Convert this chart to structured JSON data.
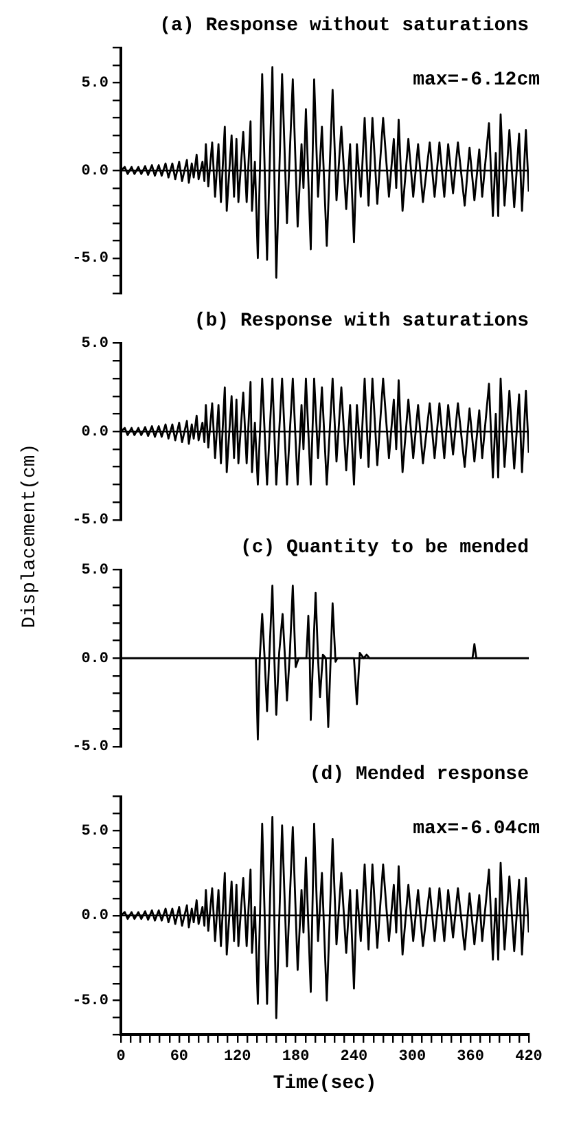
{
  "chart_data": [
    {
      "type": "line",
      "title": "(a) Response without saturations",
      "annotations": [
        "max=-6.12cm"
      ],
      "marker": "none",
      "tick_labels": "y",
      "xlim": [
        0,
        420
      ],
      "ylim": [
        -7,
        7
      ],
      "yticks": [
        {
          "value": -7,
          "label": null
        },
        {
          "value": -6,
          "label": null
        },
        {
          "value": -5,
          "label": "-5.0"
        },
        {
          "value": -4,
          "label": null
        },
        {
          "value": -3,
          "label": null
        },
        {
          "value": -2,
          "label": null
        },
        {
          "value": -1,
          "label": null
        },
        {
          "value": 0,
          "label": "0.0"
        },
        {
          "value": 1,
          "label": null
        },
        {
          "value": 2,
          "label": null
        },
        {
          "value": 3,
          "label": null
        },
        {
          "value": 4,
          "label": null
        },
        {
          "value": 5,
          "label": "5.0"
        },
        {
          "value": 6,
          "label": null
        },
        {
          "value": 7,
          "label": null
        }
      ],
      "ref_lines": [
        {
          "axis": "y",
          "value": 0,
          "color": "#000000"
        }
      ],
      "series": [
        {
          "color": "#000000",
          "x": [
            0,
            4,
            7,
            11,
            14,
            18,
            21,
            25,
            28,
            32,
            35,
            39,
            42,
            46,
            49,
            53,
            56,
            60,
            63,
            68,
            70,
            73,
            75,
            78,
            80,
            84,
            86,
            87.5,
            90,
            94,
            97,
            100.5,
            103,
            107,
            109,
            114,
            116.5,
            119,
            121,
            126,
            129.5,
            133.5,
            135,
            138,
            141,
            145.5,
            150.5,
            156,
            160,
            166,
            171,
            177,
            182,
            186,
            188,
            190.5,
            195.5,
            199,
            203,
            207,
            212,
            218,
            222,
            227,
            232,
            236,
            240,
            243,
            247,
            251,
            255,
            259,
            264,
            270,
            276,
            281,
            283.5,
            286,
            290,
            296,
            301,
            306,
            311,
            318,
            323,
            328,
            333,
            337,
            342,
            347,
            354,
            359,
            364,
            369,
            372,
            379,
            383,
            386,
            388.5,
            391,
            395,
            400,
            405,
            410,
            413,
            417,
            420
          ],
          "values": [
            0,
            0.2,
            -0.2,
            0.2,
            -0.2,
            0.2,
            -0.2,
            0.25,
            -0.25,
            0.3,
            -0.3,
            0.3,
            -0.3,
            0.4,
            -0.4,
            0.4,
            -0.5,
            0.5,
            -0.6,
            0.6,
            -0.7,
            0.4,
            -0.4,
            0.9,
            -0.5,
            0.5,
            -0.6,
            1.5,
            -0.9,
            1.6,
            -1.5,
            1.5,
            -1.8,
            2.5,
            -2.3,
            2.0,
            -1.5,
            1.8,
            -1.8,
            2.2,
            -1.8,
            2.8,
            -2.3,
            0.5,
            -5.0,
            5.5,
            -5.1,
            5.9,
            -6.12,
            5.5,
            -3.0,
            5.2,
            -3.2,
            1.5,
            -1.0,
            3.5,
            -4.5,
            5.2,
            -1.5,
            2.5,
            -4.3,
            4.6,
            -1.7,
            2.5,
            -2.2,
            1.5,
            -4.1,
            1.5,
            -1.5,
            3.0,
            -2.0,
            3.0,
            -1.9,
            3.0,
            -1.5,
            1.8,
            -1.0,
            2.9,
            -2.3,
            1.8,
            -1.5,
            1.5,
            -1.8,
            1.6,
            -1.5,
            1.6,
            -1.5,
            1.5,
            -1.3,
            1.6,
            -2.0,
            1.3,
            -1.7,
            1.2,
            -1.5,
            2.7,
            -2.6,
            1.0,
            -2.6,
            3.2,
            -2.0,
            2.3,
            -2.1,
            2.1,
            -2.3,
            2.3,
            -1.2
          ]
        }
      ]
    },
    {
      "type": "line",
      "title": "(b) Response with saturations",
      "ylabel": "Displacement(cm)",
      "marker": "none",
      "tick_labels": "y",
      "xlim": [
        0,
        420
      ],
      "ylim": [
        -5,
        5
      ],
      "yticks": [
        {
          "value": -5,
          "label": "-5.0"
        },
        {
          "value": -4,
          "label": null
        },
        {
          "value": -3,
          "label": null
        },
        {
          "value": -2,
          "label": null
        },
        {
          "value": -1,
          "label": null
        },
        {
          "value": 0,
          "label": "0.0"
        },
        {
          "value": 1,
          "label": null
        },
        {
          "value": 2,
          "label": null
        },
        {
          "value": 3,
          "label": null
        },
        {
          "value": 4,
          "label": null
        },
        {
          "value": 5,
          "label": "5.0"
        }
      ],
      "ref_lines": [
        {
          "axis": "y",
          "value": 0,
          "color": "#000000"
        }
      ],
      "series": [
        {
          "color": "#000000",
          "x": [
            0,
            4,
            7,
            11,
            14,
            18,
            21,
            25,
            28,
            32,
            35,
            39,
            42,
            46,
            49,
            53,
            56,
            60,
            63,
            68,
            70,
            73,
            75,
            78,
            80,
            84,
            86,
            87.5,
            90,
            94,
            97,
            100.5,
            103,
            107,
            109,
            114,
            116.5,
            119,
            121,
            126,
            129.5,
            133.5,
            135,
            138,
            141,
            145.5,
            150.5,
            156,
            160,
            166,
            171,
            177,
            182,
            186,
            188,
            190.5,
            195.5,
            199,
            203,
            207,
            212,
            218,
            222,
            227,
            232,
            236,
            240,
            243,
            247,
            251,
            255,
            259,
            264,
            270,
            276,
            281,
            283.5,
            286,
            290,
            296,
            301,
            306,
            311,
            318,
            323,
            328,
            333,
            337,
            342,
            347,
            354,
            359,
            364,
            369,
            372,
            379,
            383,
            386,
            388.5,
            391,
            395,
            400,
            405,
            410,
            413,
            417,
            420
          ],
          "values": [
            0,
            0.2,
            -0.2,
            0.2,
            -0.2,
            0.2,
            -0.2,
            0.25,
            -0.25,
            0.3,
            -0.3,
            0.3,
            -0.3,
            0.4,
            -0.4,
            0.4,
            -0.5,
            0.5,
            -0.6,
            0.6,
            -0.7,
            0.4,
            -0.4,
            0.9,
            -0.5,
            0.5,
            -0.6,
            1.5,
            -0.9,
            1.6,
            -1.5,
            1.5,
            -1.8,
            2.5,
            -2.3,
            2.0,
            -1.5,
            1.8,
            -1.8,
            2.2,
            -1.8,
            2.8,
            -2.3,
            0.5,
            -3.0,
            3.0,
            -3.0,
            3.0,
            -3.0,
            3.0,
            -3.0,
            3.0,
            -3.0,
            1.5,
            -1.0,
            3.0,
            -3.0,
            3.0,
            -1.5,
            2.5,
            -3.0,
            3.0,
            -1.7,
            2.5,
            -2.2,
            1.5,
            -3.0,
            1.5,
            -1.5,
            3.0,
            -2.0,
            3.0,
            -1.9,
            3.0,
            -1.5,
            1.8,
            -1.0,
            2.9,
            -2.3,
            1.8,
            -1.5,
            1.5,
            -1.8,
            1.6,
            -1.5,
            1.6,
            -1.5,
            1.5,
            -1.3,
            1.6,
            -2.0,
            1.3,
            -1.7,
            1.2,
            -1.5,
            2.7,
            -2.6,
            1.0,
            -2.6,
            3.0,
            -2.0,
            2.3,
            -2.1,
            2.1,
            -2.3,
            2.3,
            -1.2
          ]
        }
      ]
    },
    {
      "type": "line",
      "title": "(c) Quantity to be mended",
      "marker": "none",
      "tick_labels": "y",
      "xlim": [
        0,
        420
      ],
      "ylim": [
        -5,
        5
      ],
      "yticks": [
        {
          "value": -5,
          "label": "-5.0"
        },
        {
          "value": -4,
          "label": null
        },
        {
          "value": -3,
          "label": null
        },
        {
          "value": -2,
          "label": null
        },
        {
          "value": -1,
          "label": null
        },
        {
          "value": 0,
          "label": "0.0"
        },
        {
          "value": 1,
          "label": null
        },
        {
          "value": 2,
          "label": null
        },
        {
          "value": 3,
          "label": null
        },
        {
          "value": 4,
          "label": null
        },
        {
          "value": 5,
          "label": "5.0"
        }
      ],
      "ref_lines": [
        {
          "axis": "y",
          "value": 0,
          "color": "#000000"
        }
      ],
      "series": [
        {
          "color": "#000000",
          "x": [
            0,
            139,
            141,
            143,
            145.5,
            148,
            150.5,
            153,
            156,
            158,
            160,
            163,
            166.5,
            169,
            171,
            174,
            177,
            180,
            183,
            191,
            193,
            194.5,
            195.5,
            198,
            200.5,
            203,
            205,
            208,
            211,
            213.5,
            216,
            218,
            221,
            223,
            240,
            243,
            246,
            250,
            253,
            256,
            362,
            364,
            366,
            420
          ],
          "values": [
            0,
            0,
            -4.6,
            0,
            2.5,
            0,
            -3.0,
            0.3,
            4.1,
            0,
            -3.2,
            0.3,
            2.5,
            0,
            -2.4,
            0.3,
            4.1,
            -0.5,
            0,
            0,
            2.4,
            0,
            -3.5,
            0.2,
            3.7,
            0,
            -2.2,
            0.2,
            0,
            -3.9,
            0,
            3.1,
            -0.2,
            0,
            0,
            -2.6,
            0.3,
            0,
            0.2,
            0,
            0,
            0.8,
            0,
            0
          ]
        }
      ]
    },
    {
      "type": "line",
      "title": "(d) Mended response",
      "xlabel": "Time(sec)",
      "annotations": [
        "max=-6.04cm"
      ],
      "marker": "none",
      "xlim": [
        0,
        420
      ],
      "ylim": [
        -7,
        7
      ],
      "xticks": [
        0,
        {
          "value": 10,
          "label": null
        },
        {
          "value": 20,
          "label": null
        },
        {
          "value": 30,
          "label": null
        },
        {
          "value": 40,
          "label": null
        },
        {
          "value": 50,
          "label": null
        },
        60,
        {
          "value": 70,
          "label": null
        },
        {
          "value": 80,
          "label": null
        },
        {
          "value": 90,
          "label": null
        },
        {
          "value": 100,
          "label": null
        },
        {
          "value": 110,
          "label": null
        },
        120,
        {
          "value": 130,
          "label": null
        },
        {
          "value": 140,
          "label": null
        },
        {
          "value": 150,
          "label": null
        },
        {
          "value": 160,
          "label": null
        },
        {
          "value": 170,
          "label": null
        },
        180,
        {
          "value": 190,
          "label": null
        },
        {
          "value": 200,
          "label": null
        },
        {
          "value": 210,
          "label": null
        },
        {
          "value": 220,
          "label": null
        },
        {
          "value": 230,
          "label": null
        },
        240,
        {
          "value": 250,
          "label": null
        },
        {
          "value": 260,
          "label": null
        },
        {
          "value": 270,
          "label": null
        },
        {
          "value": 280,
          "label": null
        },
        {
          "value": 290,
          "label": null
        },
        300,
        {
          "value": 310,
          "label": null
        },
        {
          "value": 320,
          "label": null
        },
        {
          "value": 330,
          "label": null
        },
        {
          "value": 340,
          "label": null
        },
        {
          "value": 350,
          "label": null
        },
        360,
        {
          "value": 370,
          "label": null
        },
        {
          "value": 380,
          "label": null
        },
        {
          "value": 390,
          "label": null
        },
        {
          "value": 400,
          "label": null
        },
        {
          "value": 410,
          "label": null
        },
        420
      ],
      "yticks": [
        {
          "value": -7,
          "label": null
        },
        {
          "value": -6,
          "label": null
        },
        {
          "value": -5,
          "label": "-5.0"
        },
        {
          "value": -4,
          "label": null
        },
        {
          "value": -3,
          "label": null
        },
        {
          "value": -2,
          "label": null
        },
        {
          "value": -1,
          "label": null
        },
        {
          "value": 0,
          "label": "0.0"
        },
        {
          "value": 1,
          "label": null
        },
        {
          "value": 2,
          "label": null
        },
        {
          "value": 3,
          "label": null
        },
        {
          "value": 4,
          "label": null
        },
        {
          "value": 5,
          "label": "5.0"
        },
        {
          "value": 6,
          "label": null
        },
        {
          "value": 7,
          "label": null
        }
      ],
      "ref_lines": [
        {
          "axis": "y",
          "value": 0,
          "color": "#000000"
        }
      ],
      "series": [
        {
          "color": "#000000",
          "x": [
            0,
            4,
            7,
            11,
            14,
            18,
            21,
            25,
            28,
            32,
            35,
            39,
            42,
            46,
            49,
            53,
            56,
            60,
            63,
            68,
            70,
            73,
            75,
            78,
            80,
            84,
            86,
            87.5,
            90,
            94,
            97,
            100.5,
            103,
            107,
            109,
            114,
            116.5,
            119,
            121,
            126,
            129.5,
            133.5,
            135,
            138,
            141,
            145.5,
            150.5,
            156,
            160,
            166,
            171,
            177,
            182,
            186,
            188,
            190.5,
            195.5,
            199,
            203,
            207,
            212,
            218,
            222,
            227,
            232,
            236,
            240,
            243,
            247,
            251,
            255,
            259,
            264,
            270,
            276,
            281,
            283.5,
            286,
            290,
            296,
            301,
            306,
            311,
            318,
            323,
            328,
            333,
            337,
            342,
            347,
            354,
            359,
            364,
            369,
            372,
            379,
            383,
            386,
            388.5,
            391,
            395,
            400,
            405,
            410,
            413,
            417,
            420
          ],
          "values": [
            0,
            0.2,
            -0.2,
            0.2,
            -0.2,
            0.2,
            -0.2,
            0.25,
            -0.25,
            0.3,
            -0.3,
            0.3,
            -0.3,
            0.4,
            -0.4,
            0.4,
            -0.5,
            0.5,
            -0.6,
            0.6,
            -0.7,
            0.4,
            -0.4,
            0.9,
            -0.5,
            0.5,
            -0.6,
            1.5,
            -0.9,
            1.6,
            -1.5,
            1.5,
            -1.8,
            2.5,
            -2.3,
            2.0,
            -1.5,
            1.8,
            -1.8,
            2.2,
            -1.8,
            2.7,
            -2.2,
            0.5,
            -5.2,
            5.4,
            -5.2,
            5.8,
            -6.04,
            5.3,
            -3.0,
            5.2,
            -3.2,
            1.5,
            -1.0,
            3.4,
            -4.5,
            5.4,
            -1.5,
            2.5,
            -5.0,
            4.5,
            -1.7,
            2.5,
            -2.2,
            1.5,
            -4.3,
            1.5,
            -1.5,
            3.0,
            -2.0,
            3.0,
            -1.9,
            3.0,
            -1.5,
            1.8,
            -1.0,
            2.9,
            -2.3,
            1.8,
            -1.5,
            1.5,
            -1.8,
            1.6,
            -1.5,
            1.6,
            -1.5,
            1.5,
            -1.3,
            1.6,
            -2.0,
            1.3,
            -1.7,
            1.2,
            -1.5,
            2.7,
            -2.6,
            1.0,
            -2.6,
            3.1,
            -2.0,
            2.3,
            -2.1,
            2.1,
            -2.3,
            2.2,
            -1.0
          ]
        }
      ]
    }
  ]
}
